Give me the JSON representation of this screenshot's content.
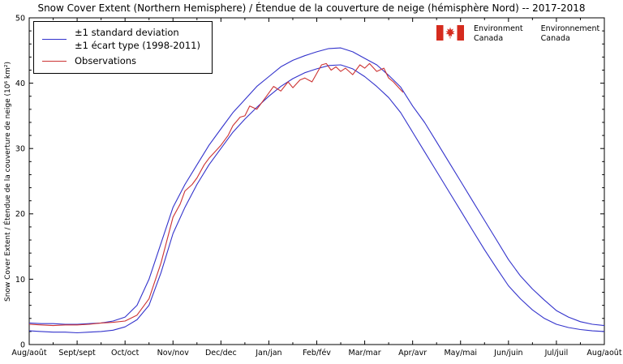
{
  "title": "Snow Cover Extent (Northern Hemisphere) / Étendue de la couverture de neige (hémisphère Nord) -- 2017-2018",
  "logo": {
    "english": [
      "Environment",
      "Canada"
    ],
    "french": [
      "Environnement",
      "Canada"
    ]
  },
  "chart_data": {
    "type": "line",
    "title": "Snow Cover Extent (Northern Hemisphere) / Étendue de la couverture de neige (hémisphère Nord) -- 2017-2018",
    "ylabel": "Snow Cover Extent / Étendue de la couverture de neige (10⁶ km²)",
    "xlabels": [
      "Aug/août",
      "Sept/sept",
      "Oct/oct",
      "Nov/nov",
      "Dec/dec",
      "Jan/jan",
      "Feb/fév",
      "Mar/mar",
      "Apr/avr",
      "May/mai",
      "Jun/juin",
      "Jul/juil",
      "Aug/août"
    ],
    "xlim": [
      0,
      12
    ],
    "ylim": [
      0,
      50
    ],
    "yticks": [
      0,
      10,
      20,
      30,
      40,
      50
    ],
    "ytick_minor_step": 2,
    "xtick_minor_step": 0.5,
    "grid": false,
    "legend_position": "upper-left",
    "legend": [
      {
        "color": "#3333cc",
        "lines": [
          "±1 standard deviation",
          "±1 écart type (1998-2011)"
        ]
      },
      {
        "color": "#cc3333",
        "lines": [
          "Observations"
        ]
      }
    ],
    "series": [
      {
        "name": "plus-1-std-dev-1998-2011",
        "color": "#3333cc",
        "points": [
          [
            0,
            3.3
          ],
          [
            0.25,
            3.2
          ],
          [
            0.5,
            3.2
          ],
          [
            0.75,
            3.1
          ],
          [
            1,
            3.1
          ],
          [
            1.25,
            3.2
          ],
          [
            1.5,
            3.3
          ],
          [
            1.75,
            3.6
          ],
          [
            2,
            4.2
          ],
          [
            2.25,
            6
          ],
          [
            2.5,
            10
          ],
          [
            2.75,
            15.5
          ],
          [
            3,
            21
          ],
          [
            3.25,
            24.5
          ],
          [
            3.5,
            27.5
          ],
          [
            3.75,
            30.5
          ],
          [
            4,
            33
          ],
          [
            4.25,
            35.5
          ],
          [
            4.5,
            37.5
          ],
          [
            4.75,
            39.5
          ],
          [
            5,
            41
          ],
          [
            5.25,
            42.5
          ],
          [
            5.5,
            43.5
          ],
          [
            5.75,
            44.2
          ],
          [
            6,
            44.8
          ],
          [
            6.25,
            45.3
          ],
          [
            6.5,
            45.4
          ],
          [
            6.75,
            44.8
          ],
          [
            7,
            43.8
          ],
          [
            7.25,
            42.8
          ],
          [
            7.5,
            41.2
          ],
          [
            7.75,
            39.4
          ],
          [
            8,
            36.5
          ],
          [
            8.25,
            34
          ],
          [
            8.5,
            31
          ],
          [
            8.75,
            28
          ],
          [
            9,
            25
          ],
          [
            9.25,
            22
          ],
          [
            9.5,
            19
          ],
          [
            9.75,
            16
          ],
          [
            10,
            13
          ],
          [
            10.25,
            10.5
          ],
          [
            10.5,
            8.5
          ],
          [
            10.75,
            6.8
          ],
          [
            11,
            5.2
          ],
          [
            11.25,
            4.2
          ],
          [
            11.5,
            3.5
          ],
          [
            11.75,
            3.1
          ],
          [
            12,
            2.9
          ]
        ]
      },
      {
        "name": "minus-1-std-dev-1998-2011",
        "color": "#3333cc",
        "points": [
          [
            0,
            2.1
          ],
          [
            0.25,
            2.0
          ],
          [
            0.5,
            1.9
          ],
          [
            0.75,
            1.9
          ],
          [
            1,
            1.8
          ],
          [
            1.25,
            1.9
          ],
          [
            1.5,
            2.0
          ],
          [
            1.75,
            2.2
          ],
          [
            2,
            2.7
          ],
          [
            2.25,
            3.8
          ],
          [
            2.5,
            6
          ],
          [
            2.75,
            11
          ],
          [
            3,
            17
          ],
          [
            3.25,
            21
          ],
          [
            3.5,
            24.5
          ],
          [
            3.75,
            27.5
          ],
          [
            4,
            30
          ],
          [
            4.25,
            32.5
          ],
          [
            4.5,
            34.5
          ],
          [
            4.75,
            36.3
          ],
          [
            5,
            38
          ],
          [
            5.25,
            39.5
          ],
          [
            5.5,
            40.7
          ],
          [
            5.75,
            41.6
          ],
          [
            6,
            42.2
          ],
          [
            6.25,
            42.7
          ],
          [
            6.5,
            42.8
          ],
          [
            6.75,
            42.2
          ],
          [
            7,
            41
          ],
          [
            7.25,
            39.5
          ],
          [
            7.5,
            37.8
          ],
          [
            7.75,
            35.5
          ],
          [
            8,
            32.5
          ],
          [
            8.25,
            29.5
          ],
          [
            8.5,
            26.5
          ],
          [
            8.75,
            23.5
          ],
          [
            9,
            20.5
          ],
          [
            9.25,
            17.5
          ],
          [
            9.5,
            14.5
          ],
          [
            9.75,
            11.7
          ],
          [
            10,
            9
          ],
          [
            10.25,
            7
          ],
          [
            10.5,
            5.3
          ],
          [
            10.75,
            4
          ],
          [
            11,
            3.1
          ],
          [
            11.25,
            2.6
          ],
          [
            11.5,
            2.3
          ],
          [
            11.75,
            2.1
          ],
          [
            12,
            2.0
          ]
        ]
      },
      {
        "name": "observations-2017-2018",
        "color": "#cc3333",
        "points": [
          [
            0,
            3.1
          ],
          [
            0.25,
            3.0
          ],
          [
            0.5,
            2.9
          ],
          [
            0.75,
            3.0
          ],
          [
            1,
            3.0
          ],
          [
            1.25,
            3.1
          ],
          [
            1.5,
            3.3
          ],
          [
            1.75,
            3.4
          ],
          [
            2,
            3.6
          ],
          [
            2.25,
            4.5
          ],
          [
            2.5,
            7
          ],
          [
            2.75,
            12.5
          ],
          [
            3,
            19.5
          ],
          [
            3.15,
            21.5
          ],
          [
            3.25,
            23.5
          ],
          [
            3.4,
            24.5
          ],
          [
            3.5,
            25.5
          ],
          [
            3.65,
            27.5
          ],
          [
            3.75,
            28.5
          ],
          [
            4,
            30.5
          ],
          [
            4.15,
            32
          ],
          [
            4.25,
            33.5
          ],
          [
            4.4,
            34.8
          ],
          [
            4.5,
            35
          ],
          [
            4.6,
            36.5
          ],
          [
            4.75,
            36
          ],
          [
            4.9,
            37.5
          ],
          [
            5,
            38.5
          ],
          [
            5.1,
            39.5
          ],
          [
            5.25,
            38.8
          ],
          [
            5.4,
            40.2
          ],
          [
            5.5,
            39.3
          ],
          [
            5.65,
            40.5
          ],
          [
            5.75,
            40.8
          ],
          [
            5.9,
            40.2
          ],
          [
            6,
            41.5
          ],
          [
            6.1,
            42.8
          ],
          [
            6.2,
            43
          ],
          [
            6.3,
            42
          ],
          [
            6.4,
            42.5
          ],
          [
            6.5,
            41.8
          ],
          [
            6.6,
            42.3
          ],
          [
            6.75,
            41.3
          ],
          [
            6.9,
            42.8
          ],
          [
            7,
            42.3
          ],
          [
            7.1,
            43
          ],
          [
            7.25,
            41.8
          ],
          [
            7.4,
            42.3
          ],
          [
            7.5,
            40.8
          ],
          [
            7.6,
            40.2
          ],
          [
            7.75,
            39
          ],
          [
            7.8,
            38.6
          ]
        ]
      }
    ]
  }
}
